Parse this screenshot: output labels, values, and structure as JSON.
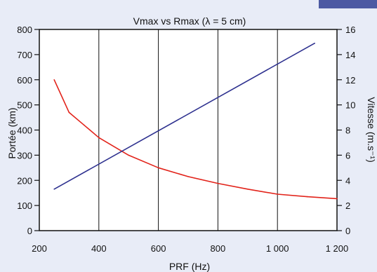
{
  "chart_data": {
    "type": "line",
    "title": "Vmax vs Rmax (λ = 5 cm)",
    "xlabel": "PRF (Hz)",
    "ylabel_left": "Portée (km)",
    "ylabel_right": "Vitesse (m.s⁻¹)",
    "xlim": [
      200,
      1200
    ],
    "ylim_left": [
      0,
      800
    ],
    "ylim_right": [
      0,
      16
    ],
    "x_ticks": [
      200,
      400,
      600,
      800,
      1000,
      1200
    ],
    "x_tick_labels": [
      "200",
      "400",
      "600",
      "800",
      "1 000",
      "1 200"
    ],
    "y_left_ticks": [
      0,
      100,
      200,
      300,
      400,
      500,
      600,
      700,
      800
    ],
    "y_right_ticks": [
      0,
      2,
      4,
      6,
      8,
      10,
      12,
      14,
      16
    ],
    "grid": "vertical lines at x ticks",
    "series": [
      {
        "axis": "left",
        "color": "#e2231a",
        "x": [
          250,
          300,
          350,
          400,
          500,
          600,
          700,
          800,
          900,
          1000,
          1100,
          1200
        ],
        "y": [
          600,
          470,
          420,
          370,
          300,
          250,
          215,
          188,
          165,
          145,
          135,
          127
        ]
      },
      {
        "axis": "right",
        "color": "#2e318f",
        "x": [
          250,
          1125
        ],
        "y": [
          3.3,
          14.9
        ]
      }
    ]
  },
  "style": {
    "background": "#e8ecf7",
    "accent": "#4d5aa3"
  }
}
